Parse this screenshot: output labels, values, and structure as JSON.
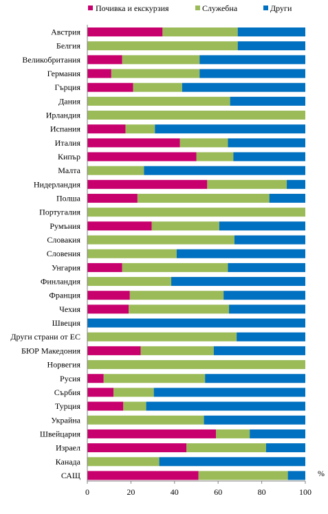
{
  "chart_data": {
    "type": "bar",
    "orientation": "horizontal",
    "stacked": true,
    "legend_position": "top",
    "grid": false,
    "xlim": [
      0,
      100
    ],
    "xticks": [
      0,
      20,
      40,
      60,
      80,
      100
    ],
    "unit_label": "%",
    "categories": [
      "Австрия",
      "Белгия",
      "Великобритания",
      "Германия",
      "Гърция",
      "Дания",
      "Ирландия",
      "Испания",
      "Италия",
      "Кипър",
      "Малта",
      "Нидерландия",
      "Полша",
      "Португалия",
      "Румъния",
      "Словакия",
      "Словения",
      "Унгария",
      "Финландия",
      "Франция",
      "Чехия",
      "Швеция",
      "Други страни от ЕС",
      "БЮР Македония",
      "Норвегия",
      "Русия",
      "Сърбия",
      "Турция",
      "Украйна",
      "Швейцария",
      "Израел",
      "Канада",
      "САЩ"
    ],
    "series": [
      {
        "name": "Почивка и екскурзия",
        "color": "#c8006e",
        "values": [
          34.5,
          0,
          16,
          11,
          21,
          0,
          0,
          17.5,
          42.5,
          50,
          0,
          55,
          23,
          0,
          29.5,
          0,
          0,
          16,
          0,
          19.5,
          19,
          0,
          0,
          24.5,
          0,
          7.5,
          12,
          16.5,
          0,
          59,
          45.5,
          0,
          51
        ]
      },
      {
        "name": "Служебна",
        "color": "#9bbb59",
        "values": [
          34.5,
          69,
          35.5,
          40.5,
          22.5,
          65.5,
          100,
          13.5,
          22,
          17,
          26,
          36.5,
          60.5,
          100,
          31,
          67.5,
          41,
          48.5,
          38.5,
          43,
          46,
          0,
          68.5,
          33.5,
          100,
          46.5,
          18.5,
          10.5,
          53.5,
          15.5,
          36.5,
          33,
          41
        ]
      },
      {
        "name": "Други",
        "color": "#0070c0",
        "values": [
          31,
          31,
          48.5,
          48.5,
          56.5,
          34.5,
          0,
          69,
          35.5,
          33,
          74,
          8.5,
          16.5,
          0,
          39.5,
          32.5,
          59,
          35.5,
          61.5,
          37.5,
          35,
          100,
          31.5,
          42,
          0,
          46,
          69.5,
          73,
          46.5,
          25.5,
          18,
          67,
          8
        ]
      }
    ]
  }
}
